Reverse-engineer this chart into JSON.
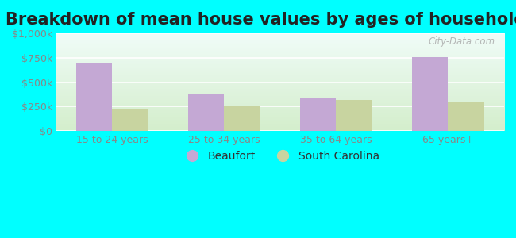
{
  "title": "Breakdown of mean house values by ages of householders",
  "categories": [
    "15 to 24 years",
    "25 to 34 years",
    "35 to 64 years",
    "65 years+"
  ],
  "beaufort": [
    700000,
    370000,
    340000,
    755000
  ],
  "south_carolina": [
    220000,
    255000,
    315000,
    290000
  ],
  "beaufort_color": "#c4a8d4",
  "sc_color": "#c8d4a0",
  "bar_width": 0.32,
  "ylim": [
    0,
    1000000
  ],
  "yticks": [
    0,
    250000,
    500000,
    750000,
    1000000
  ],
  "ytick_labels": [
    "$0",
    "$250k",
    "$500k",
    "$750k",
    "$1,000k"
  ],
  "legend_beaufort": "Beaufort",
  "legend_sc": "South Carolina",
  "bg_color": "#00ffff",
  "plot_bg_color": "#e8f5e0",
  "title_fontsize": 15,
  "tick_color": "#888888",
  "watermark": "City-Data.com"
}
